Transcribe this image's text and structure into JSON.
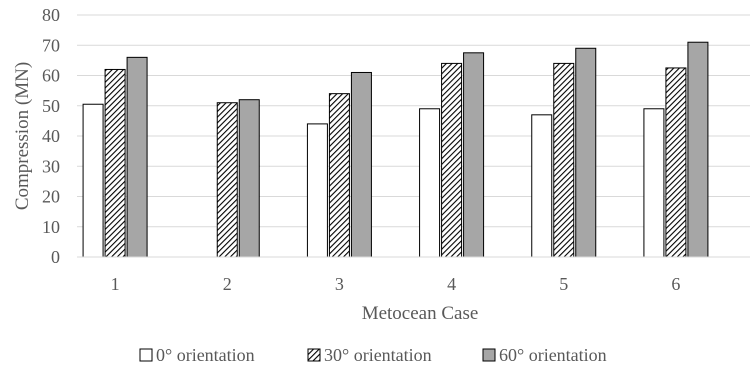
{
  "chart_data": {
    "type": "bar",
    "title": "",
    "xlabel": "Metocean Case",
    "ylabel": "Compression (MN)",
    "categories": [
      "1",
      "2",
      "3",
      "4",
      "5",
      "6"
    ],
    "ylim": [
      0,
      80
    ],
    "yticks": [
      0,
      10,
      20,
      30,
      40,
      50,
      60,
      70,
      80
    ],
    "grid": true,
    "legend_position": "bottom",
    "series": [
      {
        "name": "0° orientation",
        "values": [
          50.5,
          null,
          44,
          49,
          47,
          49
        ],
        "fill": "#ffffff",
        "pattern": "none"
      },
      {
        "name": "30° orientation",
        "values": [
          62,
          51,
          54,
          64,
          64,
          62.5
        ],
        "fill": "#ffffff",
        "pattern": "diagonal-hatch"
      },
      {
        "name": "60° orientation",
        "values": [
          66,
          52,
          61,
          67.5,
          69,
          71
        ],
        "fill": "#a6a6a6",
        "pattern": "none"
      }
    ]
  }
}
